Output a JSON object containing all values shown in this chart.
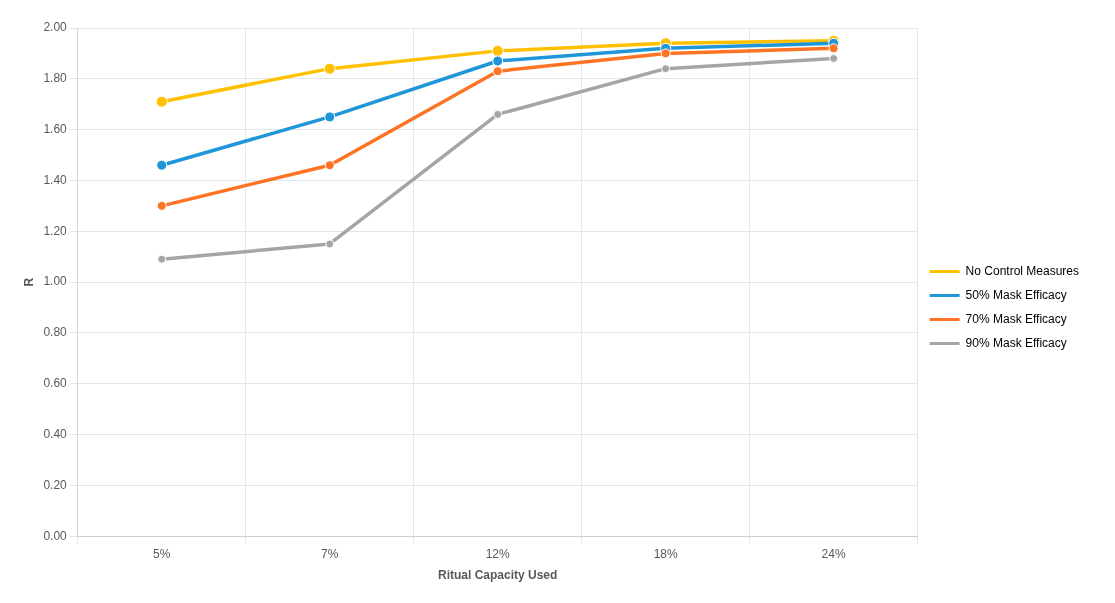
{
  "chart_data": {
    "type": "line",
    "xlabel": "Ritual Capacity Used",
    "ylabel": "R",
    "categories": [
      "5%",
      "7%",
      "12%",
      "18%",
      "24%"
    ],
    "series": [
      {
        "name": "No Control Measures",
        "color": "#ffc000",
        "values": [
          1.71,
          1.84,
          1.91,
          1.94,
          1.95
        ]
      },
      {
        "name": "50% Mask Efficacy",
        "color": "#1f96d8",
        "values": [
          1.46,
          1.65,
          1.87,
          1.92,
          1.94
        ]
      },
      {
        "name": "70% Mask Efficacy",
        "color": "#ff7424",
        "values": [
          1.3,
          1.46,
          1.83,
          1.9,
          1.92
        ]
      },
      {
        "name": "90% Mask Efficacy",
        "color": "#a5a5a5",
        "values": [
          1.09,
          1.15,
          1.66,
          1.84,
          1.88
        ]
      }
    ],
    "ylim": [
      0,
      2
    ],
    "yticks": [
      {
        "value": 0,
        "label": "0.00"
      },
      {
        "value": 0.2,
        "label": "0.20"
      },
      {
        "value": 0.4,
        "label": "0.40"
      },
      {
        "value": 0.6,
        "label": "0.60"
      },
      {
        "value": 0.8,
        "label": "0.80"
      },
      {
        "value": 1,
        "label": "1.00"
      },
      {
        "value": 1.2,
        "label": "1.20"
      },
      {
        "value": 1.4,
        "label": "1.40"
      },
      {
        "value": 1.6,
        "label": "1.60"
      },
      {
        "value": 1.8,
        "label": "1.80"
      },
      {
        "value": 2,
        "label": "2.00"
      }
    ],
    "grid": true,
    "legend": "right",
    "marker": "circle",
    "line_style": "solid"
  }
}
